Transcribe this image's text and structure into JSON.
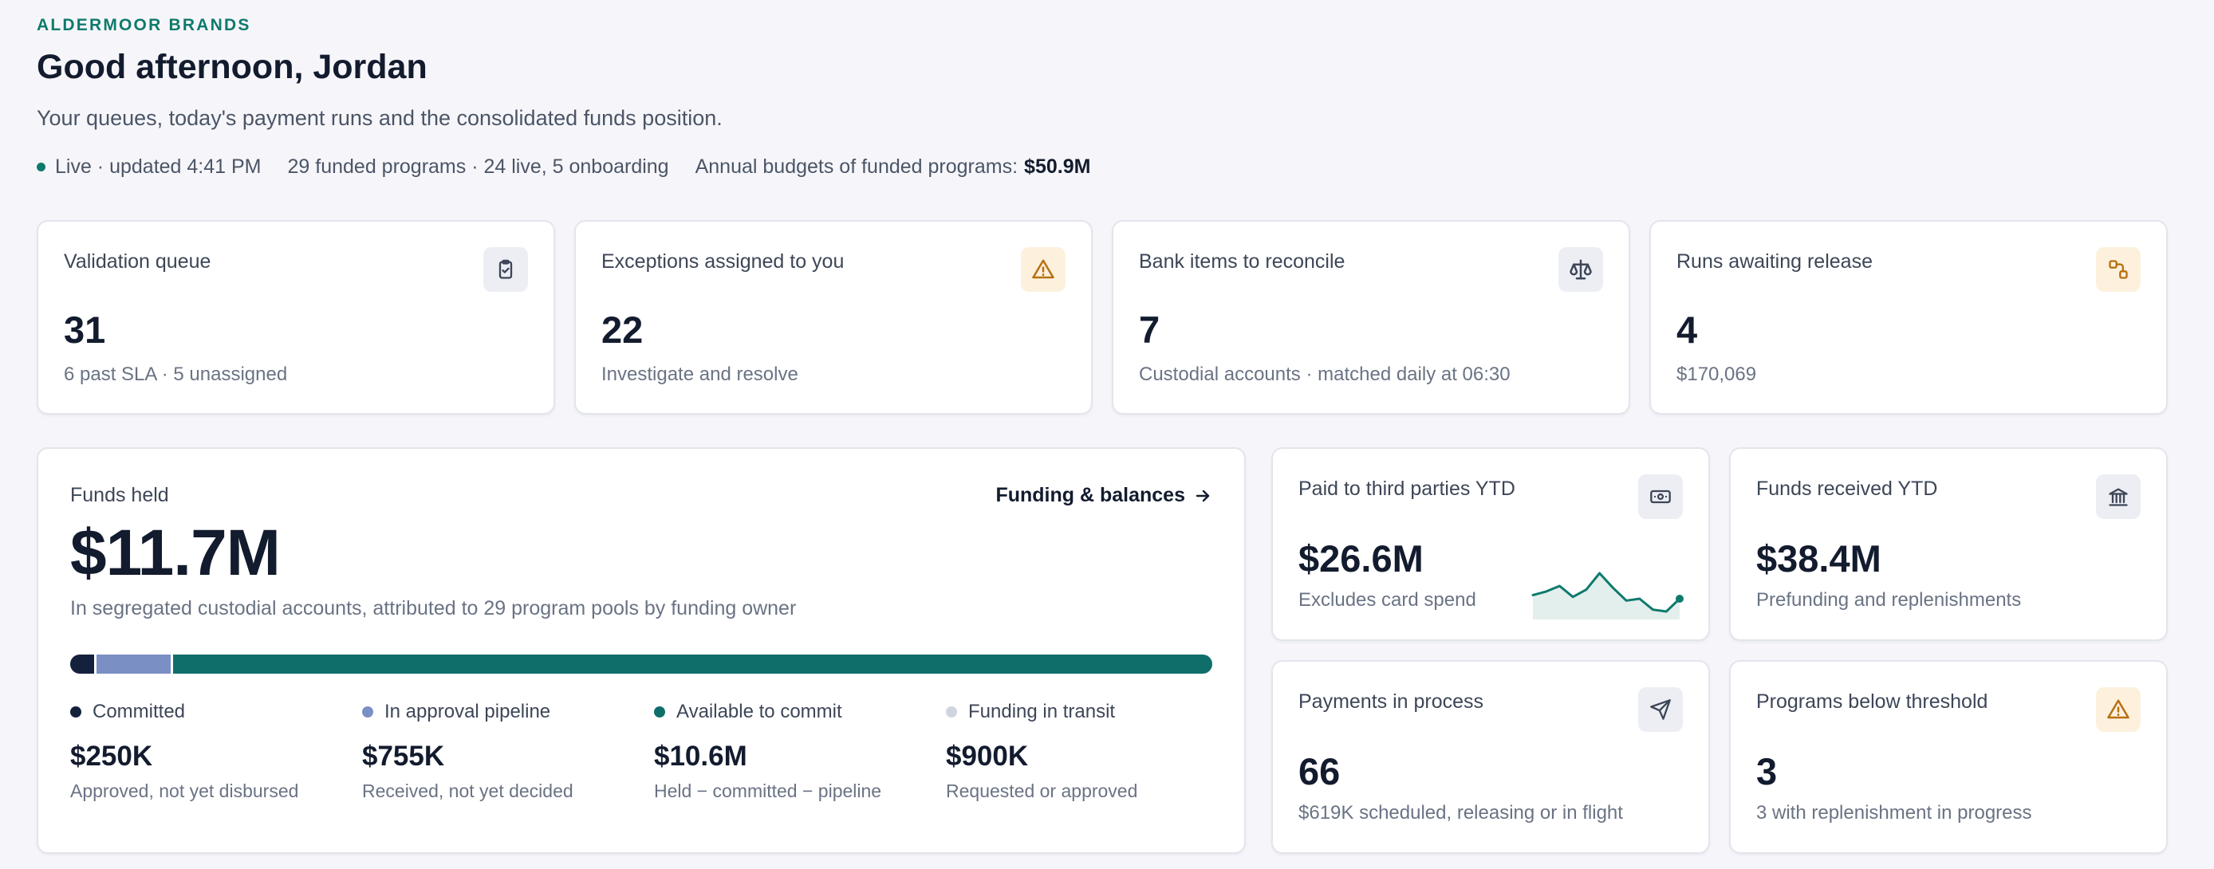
{
  "header": {
    "brand": "ALDERMOOR BRANDS",
    "greeting": "Good afternoon, Jordan",
    "subtitle": "Your queues, today's payment runs and the consolidated funds position.",
    "status_live": "Live · updated 4:41 PM",
    "programs": "29 funded programs · 24 live, 5 onboarding",
    "budgets_label": "Annual budgets of funded programs:",
    "budgets_value": "$50.9M"
  },
  "queue_cards": [
    {
      "title": "Validation queue",
      "value": "31",
      "sub": "6 past SLA · 5 unassigned",
      "icon": "clipboard-check-icon"
    },
    {
      "title": "Exceptions assigned to you",
      "value": "22",
      "sub": "Investigate and resolve",
      "icon": "warning-icon"
    },
    {
      "title": "Bank items to reconcile",
      "value": "7",
      "sub": "Custodial accounts · matched daily at 06:30",
      "icon": "scale-icon"
    },
    {
      "title": "Runs awaiting release",
      "value": "4",
      "sub": "$170,069",
      "icon": "workflow-icon"
    }
  ],
  "funds_held": {
    "title": "Funds held",
    "link": "Funding & balances",
    "amount": "$11.7M",
    "description": "In segregated custodial accounts, attributed to 29 program pools by funding owner",
    "bar_fractions": {
      "committed": 0.021,
      "pipeline": 0.065,
      "available": 0.914
    },
    "legend": [
      {
        "label": "Committed",
        "value": "$250K",
        "sub": "Approved, not yet disbursed",
        "color": "#14213d"
      },
      {
        "label": "In approval pipeline",
        "value": "$755K",
        "sub": "Received, not yet decided",
        "color": "#7a8fc4"
      },
      {
        "label": "Available to commit",
        "value": "$10.6M",
        "sub": "Held − committed − pipeline",
        "color": "#0f6e6a"
      },
      {
        "label": "Funding in transit",
        "value": "$900K",
        "sub": "Requested or approved",
        "color": "#cfd4de"
      }
    ]
  },
  "stat_cards": [
    {
      "title": "Paid to third parties YTD",
      "value": "$26.6M",
      "sub": "Excludes card spend",
      "icon": "cash-icon"
    },
    {
      "title": "Funds received YTD",
      "value": "$38.4M",
      "sub": "Prefunding and replenishments",
      "icon": "bank-icon"
    },
    {
      "title": "Payments in process",
      "value": "66",
      "sub": "$619K scheduled, releasing or in flight",
      "icon": "send-icon"
    },
    {
      "title": "Programs below threshold",
      "value": "3",
      "sub": "3 with replenishment in progress",
      "icon": "warning-icon"
    }
  ],
  "sparkline": {
    "values": [
      3.2,
      3.6,
      4.2,
      3.0,
      3.8,
      5.6,
      4.0,
      2.6,
      2.8,
      1.6,
      1.4,
      2.8
    ],
    "color": "#0f7a6c"
  }
}
